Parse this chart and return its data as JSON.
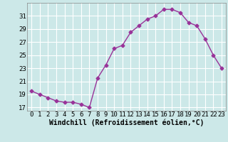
{
  "x": [
    0,
    1,
    2,
    3,
    4,
    5,
    6,
    7,
    8,
    9,
    10,
    11,
    12,
    13,
    14,
    15,
    16,
    17,
    18,
    19,
    20,
    21,
    22,
    23
  ],
  "y": [
    19.5,
    19.0,
    18.5,
    18.0,
    17.8,
    17.8,
    17.5,
    17.0,
    21.5,
    23.5,
    26.0,
    26.5,
    28.5,
    29.5,
    30.5,
    31.0,
    32.0,
    32.0,
    31.5,
    30.0,
    29.5,
    27.5,
    25.0,
    23.0
  ],
  "line_color": "#993399",
  "marker": "D",
  "marker_size": 2.5,
  "bg_color": "#cce8e8",
  "grid_color": "#ffffff",
  "xlabel": "Windchill (Refroidissement éolien,°C)",
  "xlabel_fontsize": 7,
  "tick_fontsize": 6.5,
  "ylim": [
    16.5,
    33.0
  ],
  "yticks": [
    17,
    19,
    21,
    23,
    25,
    27,
    29,
    31
  ],
  "xticks": [
    0,
    1,
    2,
    3,
    4,
    5,
    6,
    7,
    8,
    9,
    10,
    11,
    12,
    13,
    14,
    15,
    16,
    17,
    18,
    19,
    20,
    21,
    22,
    23
  ],
  "line_width": 1.0,
  "fig_width": 3.2,
  "fig_height": 2.0,
  "dpi": 100
}
